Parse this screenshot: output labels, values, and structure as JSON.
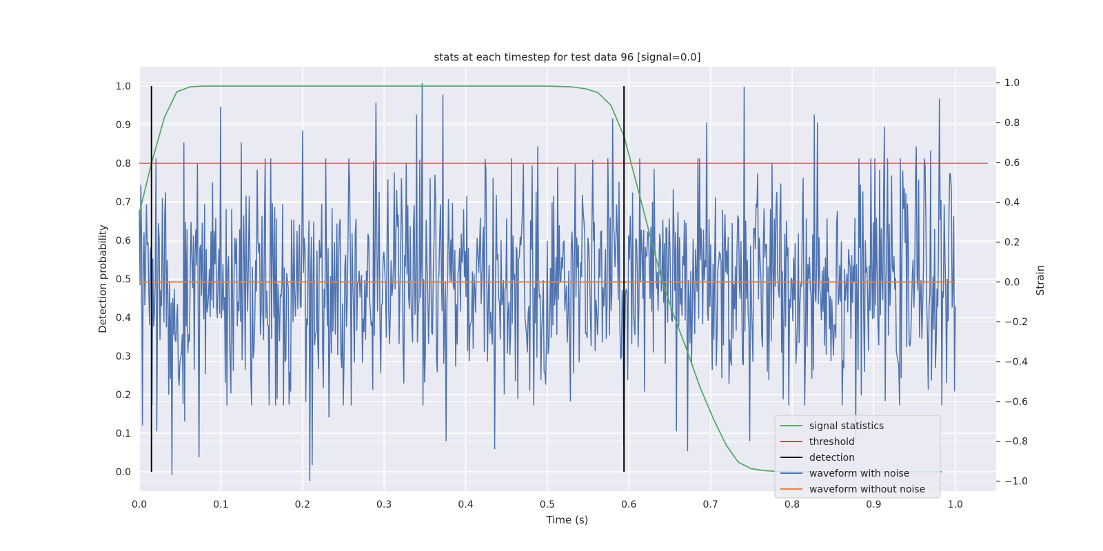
{
  "chart_data": {
    "type": "line",
    "title": "stats at each timestep for test data 96 [signal=0.0]",
    "xlabel": "Time (s)",
    "ylabel_left": "Detection probability",
    "ylabel_right": "Strain",
    "xlim": [
      0.0,
      1.05
    ],
    "ylim_left": [
      -0.05,
      1.05
    ],
    "ylim_right": [
      -1.05,
      1.08
    ],
    "x_ticks": [
      0.0,
      0.1,
      0.2,
      0.3,
      0.4,
      0.5,
      0.6,
      0.7,
      0.8,
      0.9,
      1.0
    ],
    "x_tick_labels": [
      "0.0",
      "0.1",
      "0.2",
      "0.3",
      "0.4",
      "0.5",
      "0.6",
      "0.7",
      "0.8",
      "0.9",
      "1.0"
    ],
    "y_left_ticks": [
      0.0,
      0.1,
      0.2,
      0.3,
      0.4,
      0.5,
      0.6,
      0.7,
      0.8,
      0.9,
      1.0
    ],
    "y_left_tick_labels": [
      "0.0",
      "0.1",
      "0.2",
      "0.3",
      "0.4",
      "0.5",
      "0.6",
      "0.7",
      "0.8",
      "0.9",
      "1.0"
    ],
    "y_right_ticks": [
      -1.0,
      -0.8,
      -0.6,
      -0.4,
      -0.2,
      0.0,
      0.2,
      0.4,
      0.6,
      0.8,
      1.0
    ],
    "y_right_tick_labels": [
      "−1.0",
      "−0.8",
      "−0.6",
      "−0.4",
      "−0.2",
      "0.0",
      "0.2",
      "0.4",
      "0.6",
      "0.8",
      "1.0"
    ],
    "grid": true,
    "legend_position": "lower-right",
    "series": [
      {
        "name": "signal statistics",
        "color": "#55a868",
        "axis": "left",
        "x": [
          0.0,
          0.015,
          0.031,
          0.046,
          0.062,
          0.078,
          0.1,
          0.2,
          0.3,
          0.4,
          0.5,
          0.53,
          0.547,
          0.562,
          0.578,
          0.594,
          0.609,
          0.625,
          0.64,
          0.656,
          0.672,
          0.687,
          0.703,
          0.719,
          0.734,
          0.75,
          0.766,
          0.781,
          0.8,
          0.9,
          0.984
        ],
        "y": [
          0.67,
          0.8,
          0.92,
          0.985,
          0.998,
          1.0,
          1.0,
          1.0,
          1.0,
          1.0,
          1.0,
          0.998,
          0.993,
          0.983,
          0.95,
          0.87,
          0.75,
          0.62,
          0.5,
          0.4,
          0.31,
          0.22,
          0.14,
          0.07,
          0.025,
          0.008,
          0.003,
          0.001,
          0.0,
          0.0,
          0.0
        ]
      },
      {
        "name": "threshold",
        "color": "#c44e52",
        "axis": "left",
        "x": [
          0.0,
          1.04
        ],
        "y": [
          0.8,
          0.8
        ]
      },
      {
        "name": "detection",
        "color": "#000000",
        "axis": "left",
        "segments": [
          {
            "x": 0.015,
            "y": [
              0.0,
              1.0
            ]
          },
          {
            "x": 0.594,
            "y": [
              0.0,
              1.0
            ]
          }
        ]
      },
      {
        "name": "waveform with noise",
        "color": "#4c72b0",
        "axis": "right",
        "x_start": 0.0,
        "x_end": 1.0,
        "peaks": [
          {
            "x": 0.0,
            "y": 0.36
          },
          {
            "x": 0.004,
            "y": -0.72
          },
          {
            "x": 0.011,
            "y": 0.2
          },
          {
            "x": 0.016,
            "y": -0.62
          },
          {
            "x": 0.021,
            "y": -0.75
          },
          {
            "x": 0.028,
            "y": 0.42
          },
          {
            "x": 0.032,
            "y": 0.45
          },
          {
            "x": 0.04,
            "y": -0.97
          },
          {
            "x": 0.056,
            "y": -0.7
          },
          {
            "x": 0.055,
            "y": 0.7
          },
          {
            "x": 0.062,
            "y": -0.3
          },
          {
            "x": 0.073,
            "y": -0.88
          },
          {
            "x": 0.1,
            "y": 0.88
          },
          {
            "x": 0.125,
            "y": 0.7
          },
          {
            "x": 0.2,
            "y": 0.76
          },
          {
            "x": 0.209,
            "y": -1.0
          },
          {
            "x": 0.212,
            "y": -0.92
          },
          {
            "x": 0.232,
            "y": -0.68
          },
          {
            "x": 0.29,
            "y": 0.9
          },
          {
            "x": 0.34,
            "y": 0.84
          },
          {
            "x": 0.347,
            "y": 1.0
          },
          {
            "x": 0.351,
            "y": -0.36
          },
          {
            "x": 0.372,
            "y": 0.94
          },
          {
            "x": 0.376,
            "y": -0.8
          },
          {
            "x": 0.436,
            "y": -0.84
          },
          {
            "x": 0.488,
            "y": 0.68
          },
          {
            "x": 0.497,
            "y": -0.46
          },
          {
            "x": 0.528,
            "y": -0.6
          },
          {
            "x": 0.58,
            "y": 0.82
          },
          {
            "x": 0.594,
            "y": -0.82
          },
          {
            "x": 0.658,
            "y": -0.75
          },
          {
            "x": 0.672,
            "y": -0.85
          },
          {
            "x": 0.695,
            "y": 0.8
          },
          {
            "x": 0.741,
            "y": 0.98
          },
          {
            "x": 0.748,
            "y": -0.8
          },
          {
            "x": 0.827,
            "y": 0.84
          },
          {
            "x": 0.831,
            "y": 0.8
          },
          {
            "x": 0.878,
            "y": -0.8
          },
          {
            "x": 0.913,
            "y": 0.78
          },
          {
            "x": 0.952,
            "y": 0.68
          },
          {
            "x": 0.97,
            "y": 0.66
          },
          {
            "x": 0.98,
            "y": 0.92
          },
          {
            "x": 0.998,
            "y": 0.33
          },
          {
            "x": 0.999,
            "y": -0.55
          }
        ]
      },
      {
        "name": "waveform without noise",
        "color": "#dd8452",
        "axis": "right",
        "x": [
          0.0,
          1.0
        ],
        "y": [
          0.0,
          0.0
        ]
      }
    ]
  }
}
